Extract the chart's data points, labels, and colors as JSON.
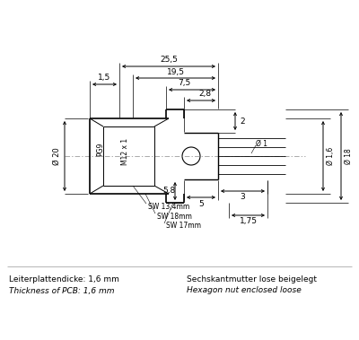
{
  "bg_color": "#ffffff",
  "line_color": "#000000",
  "text_color": "#000000",
  "bottom_text_left_1": "Leiterplattendicke: 1,6 mm",
  "bottom_text_left_2": "Thickness of PCB: 1,6 mm",
  "bottom_text_right_1": "Sechskantmutter lose beigelegt",
  "bottom_text_right_2": "Hexagon nut enclosed loose",
  "labels": {
    "25_5": "25,5",
    "19_5": "19,5",
    "2_8": "2,8",
    "7_5": "7,5",
    "1_5": "1,5",
    "2": "2",
    "o20": "Ø 20",
    "PG9": "PG9",
    "M12x1": "M12 x 1",
    "SW13": "SW 13,4mm",
    "SW18": "SW 18mm",
    "SW17": "SW 17mm",
    "o1": "Ø 1",
    "o1_6": "Ø 1,6",
    "o18": "Ø 18",
    "3": "3",
    "5": "5",
    "5_8": "5,8",
    "1_75": "1,75"
  }
}
